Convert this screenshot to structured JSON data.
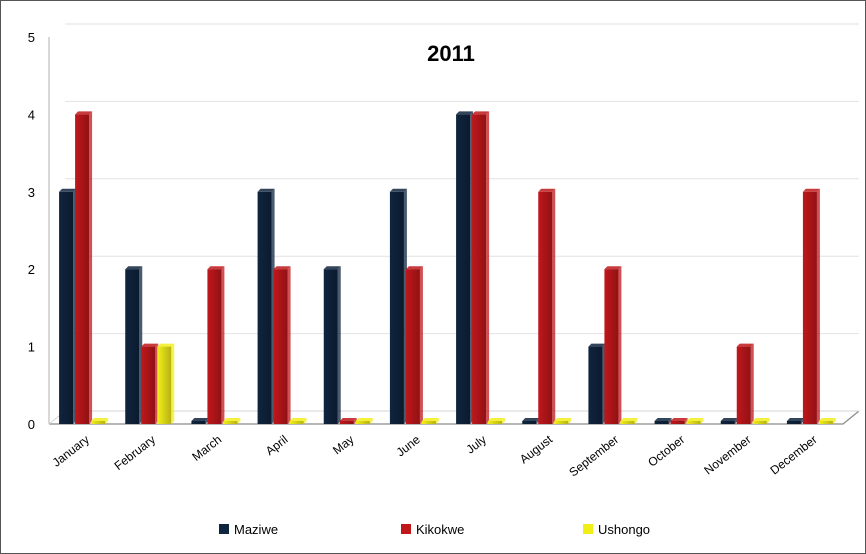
{
  "chart_data": {
    "type": "bar",
    "title": "2011",
    "xlabel": "",
    "ylabel": "",
    "ylim": [
      0,
      5
    ],
    "yticks": [
      0,
      1,
      2,
      3,
      4,
      5
    ],
    "grid": true,
    "legend_position": "bottom",
    "categories": [
      "January",
      "February",
      "March",
      "April",
      "May",
      "June",
      "July",
      "August",
      "September",
      "October",
      "November",
      "December"
    ],
    "series": [
      {
        "name": "Maziwe",
        "color": "#0f243e",
        "values": [
          3,
          2,
          0,
          3,
          2,
          3,
          4,
          0,
          1,
          0,
          0,
          0
        ]
      },
      {
        "name": "Kikokwe",
        "color": "#c0171b",
        "values": [
          4,
          1,
          2,
          2,
          0,
          2,
          4,
          3,
          2,
          0,
          1,
          3
        ]
      },
      {
        "name": "Ushongo",
        "color": "#f2ee1a",
        "values": [
          0,
          1,
          0,
          0,
          0,
          0,
          0,
          0,
          0,
          0,
          0,
          0
        ]
      }
    ]
  }
}
